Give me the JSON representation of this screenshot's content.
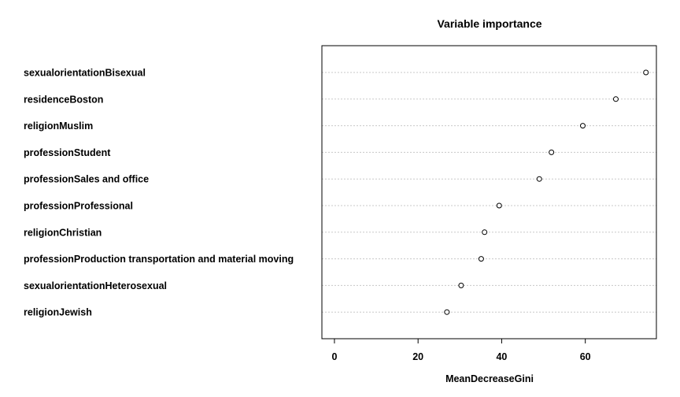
{
  "chart_data": {
    "type": "scatter",
    "title": "Variable importance",
    "xlabel": "MeanDecreaseGini",
    "ylabel": "",
    "xlim": [
      -3,
      77
    ],
    "xticks": [
      0,
      20,
      40,
      60
    ],
    "xtick_labels": [
      "0",
      "20",
      "40",
      "60"
    ],
    "grid": true,
    "categories": [
      "sexualorientationBisexual",
      "residenceBoston",
      "religionMuslim",
      "professionStudent",
      "professionSales and office",
      "professionProfessional",
      "religionChristian",
      "professionProduction transportation and material moving",
      "sexualorientationHeterosexual",
      "religionJewish"
    ],
    "values": [
      74.5,
      67.3,
      59.4,
      51.9,
      49.0,
      39.4,
      35.9,
      35.1,
      30.3,
      26.9
    ]
  }
}
